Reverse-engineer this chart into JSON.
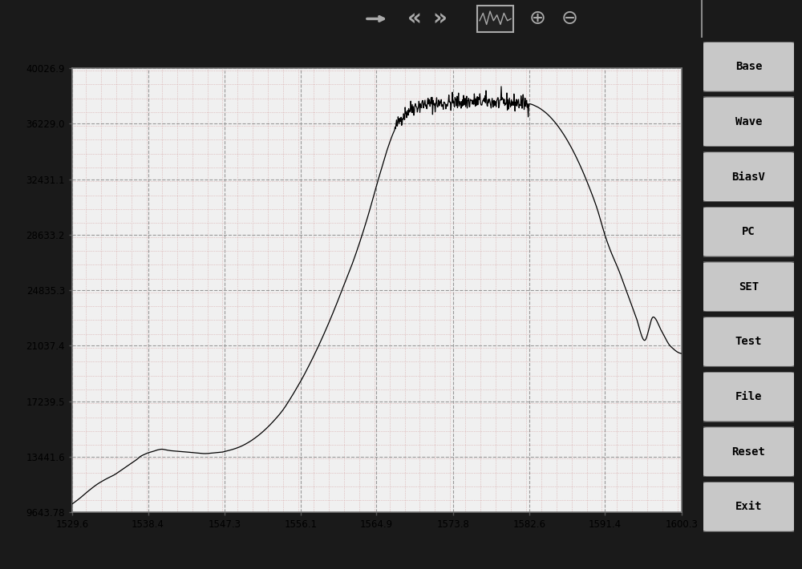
{
  "x_min": 1529.6,
  "x_max": 1600.3,
  "y_min": 9643.78,
  "y_max": 40026.9,
  "x_ticks": [
    1529.6,
    1538.4,
    1547.3,
    1556.1,
    1564.9,
    1573.8,
    1582.6,
    1591.4,
    1600.3
  ],
  "y_ticks": [
    9643.78,
    13441.6,
    17239.5,
    21037.4,
    24835.3,
    28633.2,
    32431.1,
    36229.0,
    40026.9
  ],
  "bg_outer": "#222222",
  "bg_panel": "#888888",
  "bg_plot": "#f0f0f0",
  "grid_major_color": "#aaaaaa",
  "grid_minor_color": "#e8b0b0",
  "line_color": "#000000",
  "button_bg": "#c8c8c8",
  "button_labels": [
    "Base",
    "Wave",
    "BiasV",
    "PC",
    "SET",
    "Test",
    "File",
    "Reset",
    "Exit"
  ],
  "toolbar_bg": "#1a1a1a",
  "curve_points_x": [
    1529.6,
    1530.5,
    1531.5,
    1532.5,
    1533.5,
    1534.5,
    1535.5,
    1536.5,
    1537.0,
    1537.5,
    1538.0,
    1538.4,
    1539.0,
    1539.5,
    1540.0,
    1540.5,
    1541.0,
    1542.0,
    1543.0,
    1544.0,
    1545.0,
    1546.0,
    1547.0,
    1547.3,
    1548.0,
    1549.0,
    1550.0,
    1551.0,
    1552.0,
    1553.0,
    1554.0,
    1555.0,
    1556.0,
    1556.1,
    1557.0,
    1558.0,
    1559.0,
    1560.0,
    1561.0,
    1562.0,
    1563.0,
    1564.0,
    1564.9,
    1565.5,
    1566.0,
    1567.0,
    1568.0,
    1569.0,
    1570.0,
    1571.0,
    1572.0,
    1573.0,
    1573.8,
    1574.5,
    1575.5,
    1576.5,
    1577.5,
    1578.5,
    1579.5,
    1580.5,
    1581.5,
    1582.0,
    1582.6,
    1583.5,
    1584.5,
    1585.5,
    1586.5,
    1587.5,
    1588.5,
    1589.5,
    1590.5,
    1591.0,
    1591.4,
    1592.0,
    1593.0,
    1594.0,
    1595.0,
    1596.0,
    1597.0,
    1598.0,
    1599.0,
    1600.3
  ],
  "curve_points_y": [
    10200,
    10600,
    11100,
    11550,
    11900,
    12200,
    12600,
    13000,
    13200,
    13450,
    13600,
    13700,
    13800,
    13900,
    13950,
    13900,
    13850,
    13800,
    13750,
    13700,
    13650,
    13700,
    13750,
    13800,
    13900,
    14100,
    14400,
    14800,
    15300,
    15900,
    16600,
    17500,
    18500,
    18600,
    19600,
    20800,
    22100,
    23500,
    25000,
    26500,
    28200,
    30100,
    32000,
    33200,
    34200,
    35800,
    36800,
    37300,
    37500,
    37600,
    37600,
    37650,
    37700,
    37720,
    37750,
    37760,
    37740,
    37720,
    37700,
    37680,
    37650,
    37630,
    37600,
    37400,
    37000,
    36400,
    35600,
    34600,
    33400,
    32000,
    30400,
    29400,
    28600,
    27600,
    26200,
    24600,
    23000,
    21400,
    23000,
    22000,
    21000,
    20500
  ],
  "noise_region_x_start": 1567.0,
  "noise_region_x_end": 1582.6,
  "noise_amplitude": 280
}
